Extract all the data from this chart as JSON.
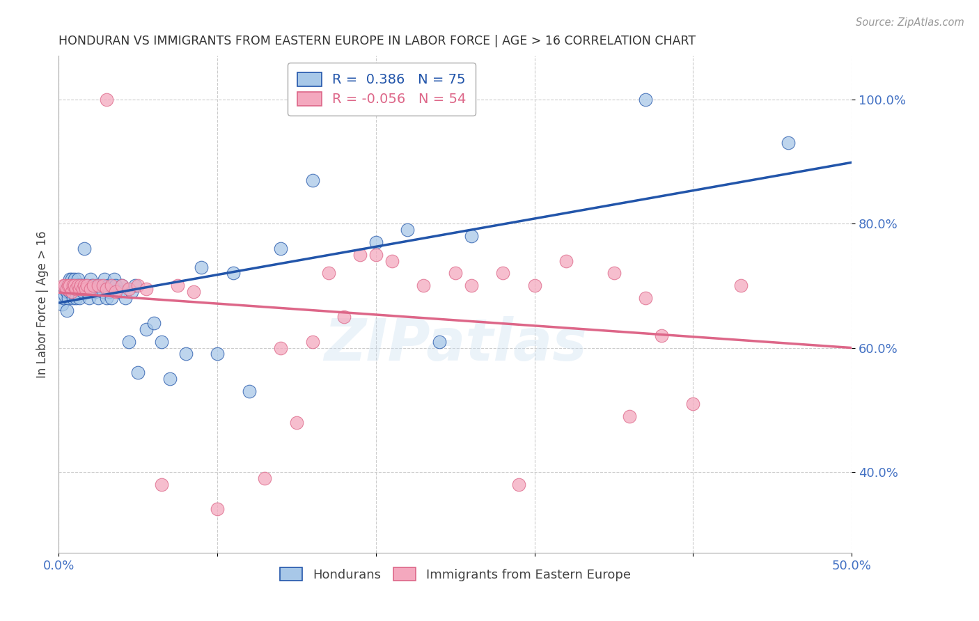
{
  "title": "HONDURAN VS IMMIGRANTS FROM EASTERN EUROPE IN LABOR FORCE | AGE > 16 CORRELATION CHART",
  "source": "Source: ZipAtlas.com",
  "ylabel": "In Labor Force | Age > 16",
  "xlim": [
    0.0,
    0.5
  ],
  "ylim": [
    0.27,
    1.07
  ],
  "yticks": [
    0.4,
    0.6,
    0.8,
    1.0
  ],
  "ytick_labels": [
    "40.0%",
    "60.0%",
    "80.0%",
    "100.0%"
  ],
  "xticks": [
    0.0,
    0.1,
    0.2,
    0.3,
    0.4,
    0.5
  ],
  "xtick_labels": [
    "0.0%",
    "",
    "",
    "",
    "",
    "50.0%"
  ],
  "blue_R": 0.386,
  "blue_N": 75,
  "pink_R": -0.056,
  "pink_N": 54,
  "blue_color": "#A8C8E8",
  "pink_color": "#F4A8BE",
  "blue_line_color": "#2255AA",
  "pink_line_color": "#DD6688",
  "axis_color": "#4472C4",
  "watermark": "ZIPatlas",
  "blue_x": [
    0.002,
    0.003,
    0.004,
    0.004,
    0.005,
    0.005,
    0.005,
    0.006,
    0.006,
    0.006,
    0.007,
    0.007,
    0.007,
    0.008,
    0.008,
    0.008,
    0.009,
    0.009,
    0.01,
    0.01,
    0.01,
    0.011,
    0.011,
    0.012,
    0.012,
    0.013,
    0.013,
    0.014,
    0.015,
    0.015,
    0.016,
    0.017,
    0.018,
    0.018,
    0.019,
    0.02,
    0.021,
    0.022,
    0.023,
    0.024,
    0.025,
    0.026,
    0.028,
    0.029,
    0.03,
    0.031,
    0.032,
    0.033,
    0.034,
    0.035,
    0.036,
    0.038,
    0.04,
    0.042,
    0.044,
    0.046,
    0.048,
    0.05,
    0.055,
    0.06,
    0.065,
    0.07,
    0.08,
    0.09,
    0.1,
    0.11,
    0.12,
    0.14,
    0.16,
    0.2,
    0.22,
    0.24,
    0.26,
    0.37,
    0.46
  ],
  "blue_y": [
    0.67,
    0.68,
    0.685,
    0.695,
    0.69,
    0.7,
    0.66,
    0.7,
    0.695,
    0.68,
    0.7,
    0.69,
    0.71,
    0.7,
    0.69,
    0.71,
    0.7,
    0.68,
    0.7,
    0.71,
    0.695,
    0.7,
    0.68,
    0.71,
    0.7,
    0.695,
    0.68,
    0.7,
    0.7,
    0.69,
    0.76,
    0.7,
    0.69,
    0.7,
    0.68,
    0.71,
    0.7,
    0.695,
    0.69,
    0.7,
    0.68,
    0.7,
    0.69,
    0.71,
    0.68,
    0.7,
    0.69,
    0.68,
    0.7,
    0.71,
    0.7,
    0.69,
    0.7,
    0.68,
    0.61,
    0.69,
    0.7,
    0.56,
    0.63,
    0.64,
    0.61,
    0.55,
    0.59,
    0.73,
    0.59,
    0.72,
    0.53,
    0.76,
    0.87,
    0.77,
    0.79,
    0.61,
    0.78,
    1.0,
    0.93
  ],
  "pink_x": [
    0.003,
    0.004,
    0.005,
    0.006,
    0.007,
    0.008,
    0.009,
    0.01,
    0.011,
    0.012,
    0.013,
    0.014,
    0.015,
    0.016,
    0.017,
    0.018,
    0.02,
    0.022,
    0.025,
    0.028,
    0.03,
    0.033,
    0.036,
    0.04,
    0.044,
    0.05,
    0.055,
    0.065,
    0.1,
    0.13,
    0.15,
    0.17,
    0.19,
    0.2,
    0.21,
    0.23,
    0.25,
    0.26,
    0.28,
    0.3,
    0.32,
    0.35,
    0.37,
    0.38,
    0.4,
    0.43,
    0.075,
    0.085,
    0.14,
    0.16,
    0.18,
    0.29,
    0.36,
    0.03
  ],
  "pink_y": [
    0.7,
    0.7,
    0.695,
    0.7,
    0.7,
    0.69,
    0.7,
    0.7,
    0.695,
    0.7,
    0.695,
    0.7,
    0.695,
    0.7,
    0.695,
    0.7,
    0.695,
    0.7,
    0.7,
    0.7,
    0.695,
    0.7,
    0.69,
    0.7,
    0.695,
    0.7,
    0.695,
    0.38,
    0.34,
    0.39,
    0.48,
    0.72,
    0.75,
    0.75,
    0.74,
    0.7,
    0.72,
    0.7,
    0.72,
    0.7,
    0.74,
    0.72,
    0.68,
    0.62,
    0.51,
    0.7,
    0.7,
    0.69,
    0.6,
    0.61,
    0.65,
    0.38,
    0.49,
    1.0
  ]
}
